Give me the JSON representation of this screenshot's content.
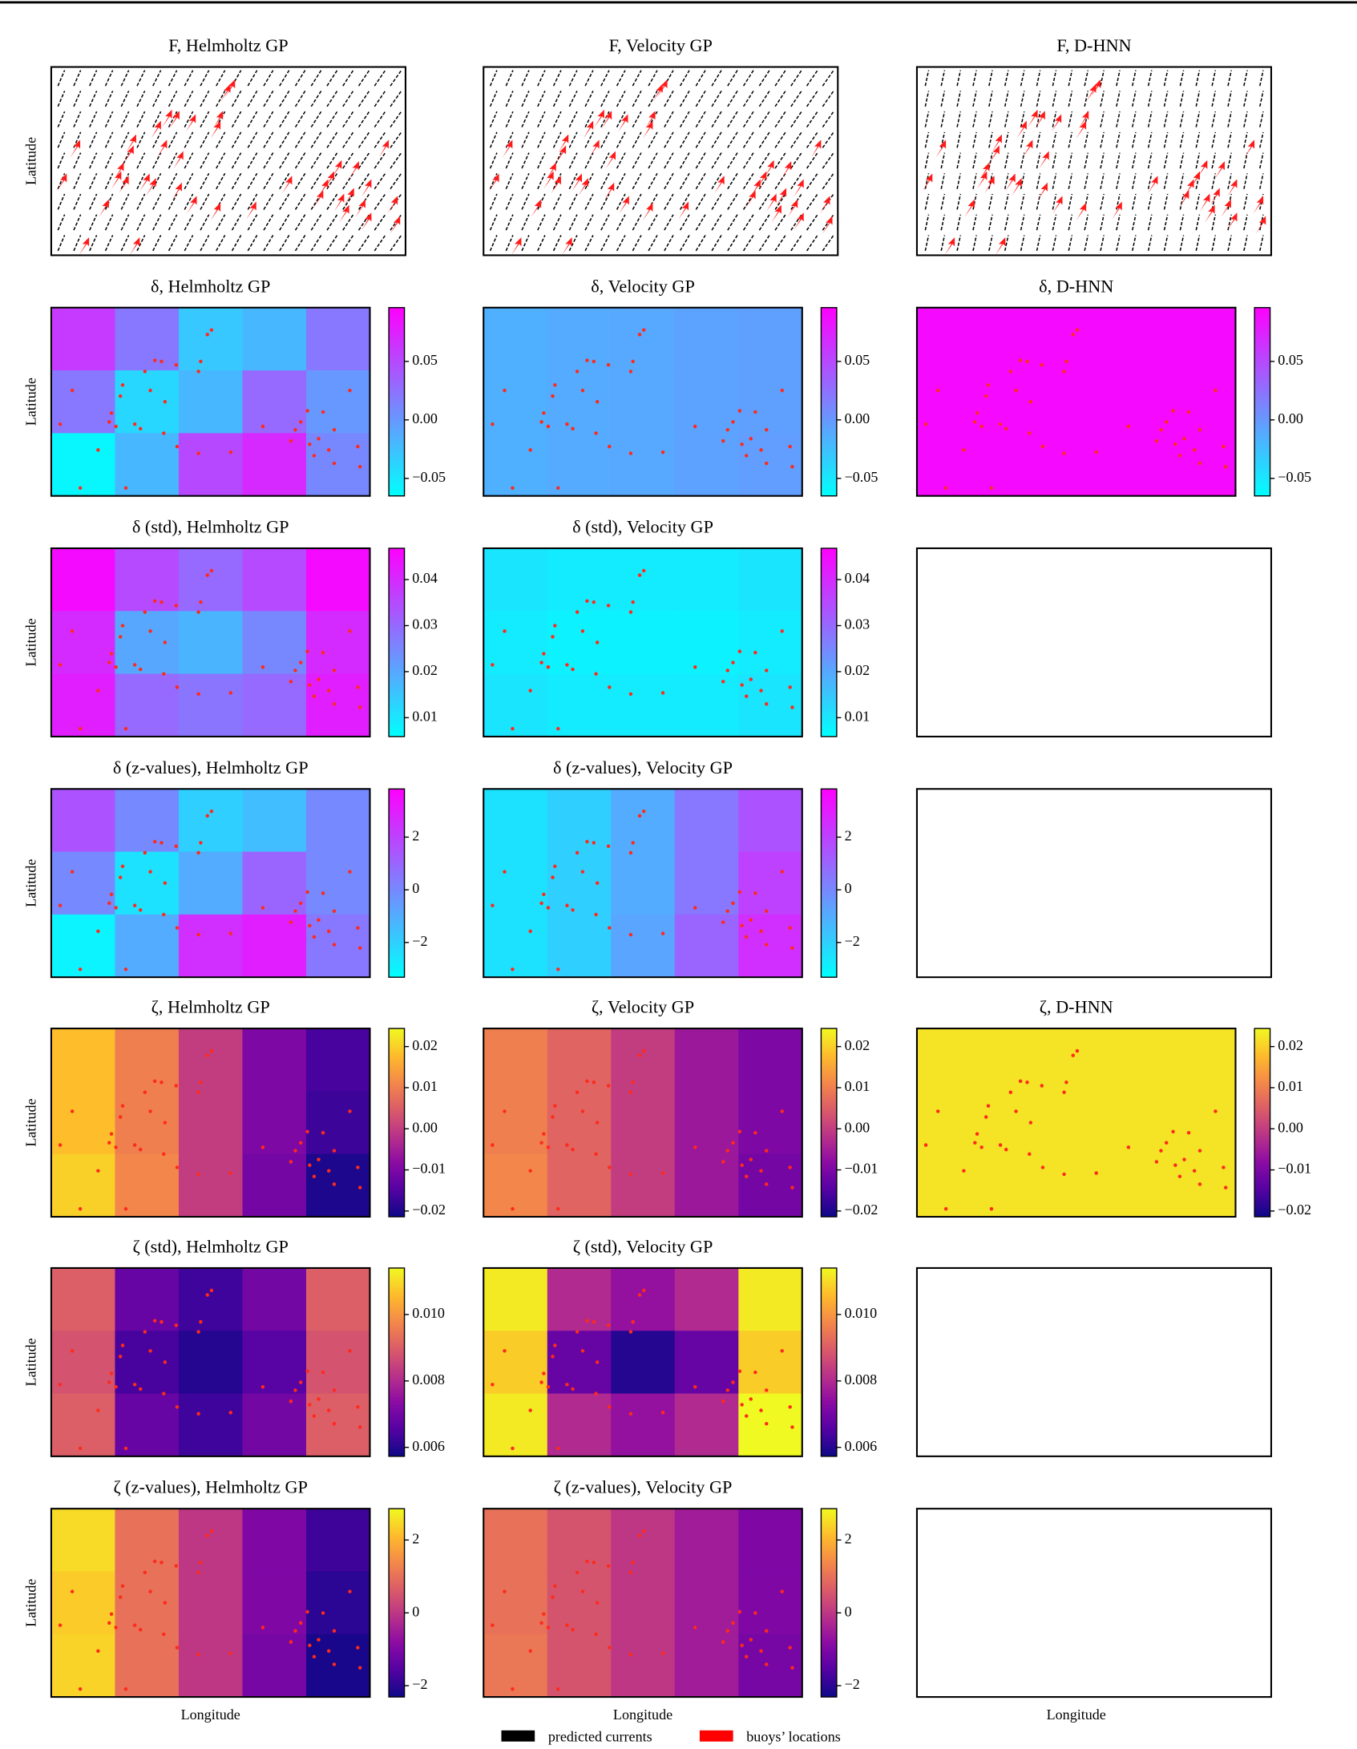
{
  "chart_data": [
    {
      "type": "quiver",
      "title": "F, Helmholtz GP",
      "ylabel": "Latitude"
    },
    {
      "type": "quiver",
      "title": "F, Velocity GP"
    },
    {
      "type": "quiver",
      "title": "F, D-HNN"
    },
    {
      "type": "heatmap",
      "title": "δ, Helmholtz GP",
      "ylabel": "Latitude",
      "colormap": "cool",
      "clim": [
        -0.065,
        0.096
      ],
      "cticks": [
        {
          "value": -0.05,
          "label": "−0.05"
        },
        {
          "value": 0,
          "label": "0.00"
        },
        0.05
      ],
      "values": [
        [
          0.06,
          0.02,
          -0.03,
          -0.02,
          0.02
        ],
        [
          0.02,
          -0.04,
          -0.02,
          0.03,
          0.0
        ],
        [
          -0.06,
          -0.02,
          0.05,
          0.07,
          0.01
        ]
      ]
    },
    {
      "type": "heatmap",
      "title": "δ, Velocity GP",
      "colormap": "cool",
      "clim": [
        -0.065,
        0.096
      ],
      "cticks": [
        {
          "value": -0.05,
          "label": "−0.05"
        },
        {
          "value": 0,
          "label": "0.00"
        },
        0.05
      ],
      "values": [
        [
          -0.015,
          -0.012,
          -0.01,
          -0.007,
          -0.005
        ],
        [
          -0.015,
          -0.012,
          -0.01,
          -0.007,
          -0.005
        ],
        [
          -0.015,
          -0.012,
          -0.01,
          -0.006,
          -0.004
        ]
      ]
    },
    {
      "type": "heatmap",
      "title": "δ, D-HNN",
      "colormap": "cool",
      "clim": [
        -0.065,
        0.096
      ],
      "cticks": [
        {
          "value": -0.05,
          "label": "−0.05"
        },
        {
          "value": 0,
          "label": "0.00"
        },
        0.05
      ],
      "values": [
        [
          0.09,
          0.09,
          0.09,
          0.09,
          0.09
        ],
        [
          0.09,
          0.09,
          0.09,
          0.09,
          0.09
        ],
        [
          0.09,
          0.09,
          0.09,
          0.09,
          0.09
        ]
      ]
    },
    {
      "type": "heatmap",
      "title": "δ (std), Helmholtz GP",
      "ylabel": "Latitude",
      "colormap": "cool",
      "clim": [
        0.0059,
        0.0468
      ],
      "cticks": [
        0.01,
        0.02,
        0.03,
        0.04
      ],
      "values": [
        [
          0.045,
          0.035,
          0.03,
          0.035,
          0.045
        ],
        [
          0.04,
          0.02,
          0.018,
          0.025,
          0.04
        ],
        [
          0.042,
          0.03,
          0.028,
          0.03,
          0.042
        ]
      ]
    },
    {
      "type": "heatmap",
      "title": "δ (std), Velocity GP",
      "colormap": "cool",
      "clim": [
        0.0059,
        0.0468
      ],
      "cticks": [
        0.01,
        0.02,
        0.03,
        0.04
      ],
      "values": [
        [
          0.01,
          0.009,
          0.009,
          0.009,
          0.01
        ],
        [
          0.009,
          0.008,
          0.008,
          0.008,
          0.009
        ],
        [
          0.01,
          0.009,
          0.009,
          0.009,
          0.01
        ]
      ]
    },
    {
      "type": "empty"
    },
    {
      "type": "heatmap",
      "title": "δ (z-values), Helmholtz GP",
      "ylabel": "Latitude",
      "colormap": "cool",
      "clim": [
        -3.32,
        3.83
      ],
      "cticks": [
        {
          "value": -2,
          "label": "−2"
        },
        0,
        2
      ],
      "values": [
        [
          1.5,
          0,
          -2,
          -1.5,
          0
        ],
        [
          0,
          -2.5,
          -1,
          1,
          0
        ],
        [
          -3,
          -1,
          2.5,
          3,
          0.5
        ]
      ]
    },
    {
      "type": "heatmap",
      "title": "δ (z-values), Velocity GP",
      "colormap": "cool",
      "clim": [
        -3.32,
        3.83
      ],
      "cticks": [
        {
          "value": -2,
          "label": "−2"
        },
        0,
        2
      ],
      "values": [
        [
          -2.5,
          -2,
          -1,
          0.5,
          1.5
        ],
        [
          -2.5,
          -2,
          -1,
          0.5,
          2
        ],
        [
          -2.5,
          -2,
          -0.8,
          1,
          2.5
        ]
      ]
    },
    {
      "type": "empty"
    },
    {
      "type": "heatmap",
      "title": "ζ, Helmholtz GP",
      "ylabel": "Latitude",
      "colormap": "plasma",
      "clim": [
        -0.0214,
        0.0244
      ],
      "cticks": [
        {
          "value": -0.02,
          "label": "−0.02"
        },
        {
          "value": -0.01,
          "label": "−0.01"
        },
        {
          "value": 0,
          "label": "0.00"
        },
        0.01,
        0.02
      ],
      "values": [
        [
          0.018,
          0.01,
          0.0,
          -0.01,
          -0.016
        ],
        [
          0.018,
          0.01,
          0.0,
          -0.01,
          -0.017
        ],
        [
          0.02,
          0.011,
          0.0,
          -0.011,
          -0.02
        ]
      ]
    },
    {
      "type": "heatmap",
      "title": "ζ, Velocity GP",
      "colormap": "plasma",
      "clim": [
        -0.0214,
        0.0244
      ],
      "cticks": [
        {
          "value": -0.02,
          "label": "−0.02"
        },
        {
          "value": -0.01,
          "label": "−0.01"
        },
        {
          "value": 0,
          "label": "0.00"
        },
        0.01,
        0.02
      ],
      "values": [
        [
          0.01,
          0.006,
          0.0,
          -0.006,
          -0.01
        ],
        [
          0.01,
          0.006,
          0.0,
          -0.006,
          -0.01
        ],
        [
          0.011,
          0.006,
          0.0,
          -0.006,
          -0.011
        ]
      ]
    },
    {
      "type": "heatmap",
      "title": "ζ, D-HNN",
      "colormap": "plasma",
      "clim": [
        -0.0214,
        0.0244
      ],
      "cticks": [
        {
          "value": -0.02,
          "label": "−0.02"
        },
        {
          "value": -0.01,
          "label": "−0.01"
        },
        {
          "value": 0,
          "label": "0.00"
        },
        0.01,
        0.02
      ],
      "values": [
        [
          0.022,
          0.022,
          0.022,
          0.022,
          0.022
        ],
        [
          0.022,
          0.022,
          0.022,
          0.022,
          0.022
        ],
        [
          0.022,
          0.022,
          0.022,
          0.022,
          0.022
        ]
      ]
    },
    {
      "type": "heatmap",
      "title": "ζ (std), Helmholtz GP",
      "ylabel": "Latitude",
      "colormap": "plasma",
      "clim": [
        0.00573,
        0.0114
      ],
      "cticks": [
        {
          "value": 0.006,
          "label": "0.006"
        },
        {
          "value": 0.008,
          "label": "0.008"
        },
        {
          "value": 0.01,
          "label": "0.010"
        }
      ],
      "values": [
        [
          0.009,
          0.0068,
          0.0063,
          0.007,
          0.009
        ],
        [
          0.0088,
          0.0064,
          0.006,
          0.0066,
          0.0088
        ],
        [
          0.009,
          0.0068,
          0.0063,
          0.007,
          0.009
        ]
      ]
    },
    {
      "type": "heatmap",
      "title": "ζ (std), Velocity GP",
      "colormap": "plasma",
      "clim": [
        0.00573,
        0.0114
      ],
      "cticks": [
        {
          "value": 0.006,
          "label": "0.006"
        },
        {
          "value": 0.008,
          "label": "0.008"
        },
        {
          "value": 0.01,
          "label": "0.010"
        }
      ],
      "values": [
        [
          0.0112,
          0.008,
          0.0075,
          0.008,
          0.0112
        ],
        [
          0.0108,
          0.0068,
          0.006,
          0.0068,
          0.0108
        ],
        [
          0.0112,
          0.008,
          0.0075,
          0.008,
          0.0114
        ]
      ]
    },
    {
      "type": "empty"
    },
    {
      "type": "heatmap",
      "title": "ζ (z-values), Helmholtz GP",
      "ylabel": "Latitude",
      "xlabel": "Longitude",
      "colormap": "plasma",
      "clim": [
        -2.31,
        2.86
      ],
      "cticks": [
        {
          "value": -2,
          "label": "−2"
        },
        0,
        2
      ],
      "values": [
        [
          2.5,
          1,
          0,
          -1,
          -1.8
        ],
        [
          2.3,
          1,
          0,
          -1,
          -2
        ],
        [
          2.4,
          1,
          0,
          -1.1,
          -2.2
        ]
      ]
    },
    {
      "type": "heatmap",
      "title": "ζ (z-values), Velocity GP",
      "xlabel": "Longitude",
      "colormap": "plasma",
      "clim": [
        -2.31,
        2.86
      ],
      "cticks": [
        {
          "value": -2,
          "label": "−2"
        },
        0,
        2
      ],
      "values": [
        [
          1,
          0.5,
          0,
          -0.5,
          -1
        ],
        [
          1,
          0.5,
          0,
          -0.5,
          -1
        ],
        [
          1.1,
          0.5,
          0,
          -0.5,
          -1.1
        ]
      ]
    },
    {
      "type": "empty",
      "xlabel": "Longitude"
    }
  ],
  "buoys": {
    "x": [
      6.6,
      2.8,
      9.1,
      14.7,
      18.9,
      18.2,
      20.3,
      21.7,
      22.4,
      23.4,
      26.2,
      28.0,
      29.4,
      31.1,
      32.5,
      34.6,
      35.7,
      35.3,
      39.2,
      39.5,
      46.2,
      46.9,
      46.2,
      49.0,
      50.3,
      56.3,
      66.4,
      75.2,
      76.6,
      78.3,
      80.4,
      81.1,
      82.5,
      83.9,
      85.3,
      87.1,
      88.8,
      88.8,
      93.7,
      96.2,
      96.9
    ],
    "y": [
      56.0,
      38.1,
      4.2,
      24.4,
      44.0,
      39.3,
      36.9,
      53.0,
      58.9,
      4.2,
      38.1,
      35.7,
      66.1,
      56.0,
      72.0,
      71.4,
      50.0,
      33.3,
      69.6,
      26.2,
      66.1,
      71.4,
      22.6,
      85.7,
      88.1,
      23.2,
      36.9,
      29.2,
      35.1,
      39.3,
      45.2,
      27.4,
      21.4,
      30.4,
      44.6,
      24.4,
      17.3,
      35.1,
      56.0,
      26.2,
      15.5
    ]
  },
  "legend": [
    {
      "name": "predicted currents",
      "color": "#000000"
    },
    {
      "name": "buoys’ locations",
      "color": "#ff0000"
    }
  ]
}
